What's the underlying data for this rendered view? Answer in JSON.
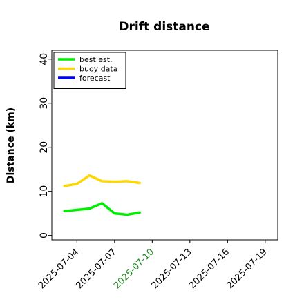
{
  "chart_data": {
    "type": "line",
    "title": "Drift distance",
    "xlabel": "",
    "ylabel": "Distance (km)",
    "ylim": [
      -1,
      42
    ],
    "xlim": [
      "2025-07-02T00:00",
      "2025-07-20T00:00"
    ],
    "x_ticks": [
      "2025-07-04",
      "2025-07-07",
      "2025-07-10",
      "2025-07-13",
      "2025-07-16",
      "2025-07-19"
    ],
    "x_tick_highlight": "2025-07-10",
    "y_ticks": [
      0,
      10,
      20,
      30,
      40
    ],
    "y_tick_labels": [
      "0",
      "10",
      "20",
      "30",
      "40"
    ],
    "grid": false,
    "legend_position": "top-left",
    "series": [
      {
        "name": "best est.",
        "color": "#00ee00",
        "x": [
          "2025-07-03T00:00",
          "2025-07-04T00:00",
          "2025-07-05T00:00",
          "2025-07-06T00:00",
          "2025-07-07T00:00",
          "2025-07-08T00:00",
          "2025-07-09T00:00"
        ],
        "values": [
          5.5,
          5.8,
          6.1,
          7.3,
          5.0,
          4.7,
          5.2
        ]
      },
      {
        "name": "buoy data",
        "color": "#ffd700",
        "x": [
          "2025-07-03T00:00",
          "2025-07-04T00:00",
          "2025-07-05T00:00",
          "2025-07-06T00:00",
          "2025-07-07T00:00",
          "2025-07-08T00:00",
          "2025-07-09T00:00"
        ],
        "values": [
          11.2,
          11.7,
          13.6,
          12.3,
          12.2,
          12.3,
          11.9
        ]
      },
      {
        "name": "forecast",
        "color": "#0000ff",
        "x": [],
        "values": []
      }
    ],
    "highlight_color": "#228B22"
  }
}
